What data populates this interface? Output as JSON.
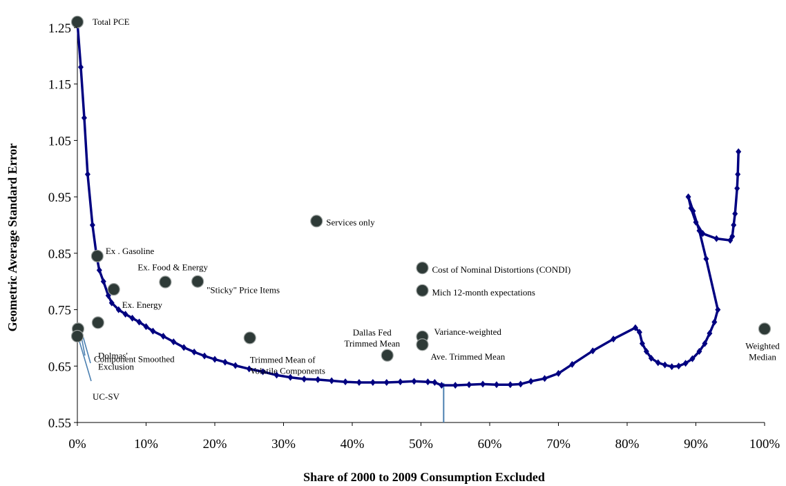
{
  "chart_data": {
    "type": "line",
    "title": "",
    "xlabel": "Share of 2000 to 2009 Consumption Excluded",
    "ylabel": "Geometric Average Standard Error",
    "xlim": [
      0,
      100
    ],
    "ylim": [
      0.55,
      1.25
    ],
    "x_ticks": [
      "0%",
      "10%",
      "20%",
      "30%",
      "40%",
      "50%",
      "60%",
      "70%",
      "80%",
      "90%",
      "100%"
    ],
    "y_ticks": [
      "0.55",
      "0.65",
      "0.75",
      "0.85",
      "0.95",
      "1.05",
      "1.15",
      "1.25"
    ],
    "series": [
      {
        "color": "#000080",
        "points": [
          [
            0,
            1.26
          ],
          [
            0.5,
            1.18
          ],
          [
            1,
            1.09
          ],
          [
            1.5,
            0.99
          ],
          [
            2.2,
            0.9
          ],
          [
            2.8,
            0.845
          ],
          [
            3.2,
            0.82
          ],
          [
            3.8,
            0.8
          ],
          [
            4.5,
            0.775
          ],
          [
            5,
            0.762
          ],
          [
            6,
            0.75
          ],
          [
            7,
            0.742
          ],
          [
            8,
            0.735
          ],
          [
            9,
            0.728
          ],
          [
            10,
            0.72
          ],
          [
            11,
            0.712
          ],
          [
            12.5,
            0.703
          ],
          [
            14,
            0.693
          ],
          [
            15.5,
            0.683
          ],
          [
            17,
            0.675
          ],
          [
            18.5,
            0.668
          ],
          [
            20,
            0.662
          ],
          [
            21.5,
            0.657
          ],
          [
            23,
            0.651
          ],
          [
            25,
            0.645
          ],
          [
            27,
            0.64
          ],
          [
            29,
            0.634
          ],
          [
            31,
            0.63
          ],
          [
            33,
            0.627
          ],
          [
            35,
            0.626
          ],
          [
            37,
            0.624
          ],
          [
            39,
            0.622
          ],
          [
            41,
            0.621
          ],
          [
            43,
            0.621
          ],
          [
            45,
            0.621
          ],
          [
            47,
            0.622
          ],
          [
            49,
            0.623
          ],
          [
            51,
            0.622
          ],
          [
            52,
            0.621
          ],
          [
            53,
            0.616
          ],
          [
            55,
            0.616
          ],
          [
            57,
            0.617
          ],
          [
            59,
            0.618
          ],
          [
            61,
            0.617
          ],
          [
            63,
            0.617
          ],
          [
            64.5,
            0.618
          ],
          [
            66,
            0.623
          ],
          [
            68,
            0.628
          ],
          [
            70,
            0.637
          ],
          [
            72,
            0.653
          ],
          [
            75,
            0.677
          ],
          [
            78,
            0.698
          ],
          [
            81.2,
            0.718
          ],
          [
            81.8,
            0.71
          ],
          [
            82.2,
            0.69
          ],
          [
            82.8,
            0.676
          ],
          [
            83.5,
            0.664
          ],
          [
            84.5,
            0.656
          ],
          [
            85.5,
            0.652
          ],
          [
            86.5,
            0.649
          ],
          [
            87.5,
            0.65
          ],
          [
            88.5,
            0.655
          ],
          [
            89.5,
            0.663
          ],
          [
            90.5,
            0.676
          ],
          [
            91.3,
            0.69
          ],
          [
            92,
            0.708
          ],
          [
            92.7,
            0.728
          ],
          [
            93.2,
            0.75
          ],
          [
            91.5,
            0.84
          ],
          [
            90.5,
            0.89
          ],
          [
            89.6,
            0.925
          ],
          [
            88.9,
            0.95
          ],
          [
            89.3,
            0.93
          ],
          [
            90,
            0.905
          ],
          [
            91,
            0.885
          ],
          [
            93,
            0.876
          ],
          [
            95,
            0.873
          ],
          [
            95.3,
            0.88
          ],
          [
            95.5,
            0.9
          ],
          [
            95.7,
            0.92
          ],
          [
            96,
            0.965
          ],
          [
            96.1,
            0.99
          ],
          [
            96.2,
            1.03
          ]
        ]
      }
    ],
    "annotations": [
      {
        "label": "Total PCE",
        "x": 0,
        "y": 1.26
      },
      {
        "label": "Ex . Gasoline",
        "x": 2.9,
        "y": 0.845
      },
      {
        "label": "Ex. Food & Energy",
        "x": 12.8,
        "y": 0.799
      },
      {
        "label": "\"Sticky\" Price Items",
        "x": 17.5,
        "y": 0.8
      },
      {
        "label": "Ex. Energy",
        "x": 5.3,
        "y": 0.786
      },
      {
        "label": "Services only",
        "x": 34.8,
        "y": 0.907
      },
      {
        "label": "Cost of Nominal Distortions (CONDI)",
        "x": 50.2,
        "y": 0.824
      },
      {
        "label": "Mich 12-month expectations",
        "x": 50.2,
        "y": 0.784
      },
      {
        "label": "Trimmed Mean of Volatile Components",
        "x": 25.1,
        "y": 0.7
      },
      {
        "label": "Dallas Fed Trimmed Mean",
        "x": 45.1,
        "y": 0.669
      },
      {
        "label": "Variance-weighted",
        "x": 50.2,
        "y": 0.702
      },
      {
        "label": "Ave. Trimmed Mean",
        "x": 50.2,
        "y": 0.688
      },
      {
        "label": "Weighted Median",
        "x": 100,
        "y": 0.716
      },
      {
        "label": "Dolmas' Exclusion",
        "x": 0.1,
        "y": 0.716
      },
      {
        "label": "Component Smoothed",
        "x": 3,
        "y": 0.727
      },
      {
        "label": "UC-SV",
        "x": 0,
        "y": 0.703
      }
    ],
    "reference_line_x": 53.3,
    "grid": false,
    "legend": "none"
  }
}
